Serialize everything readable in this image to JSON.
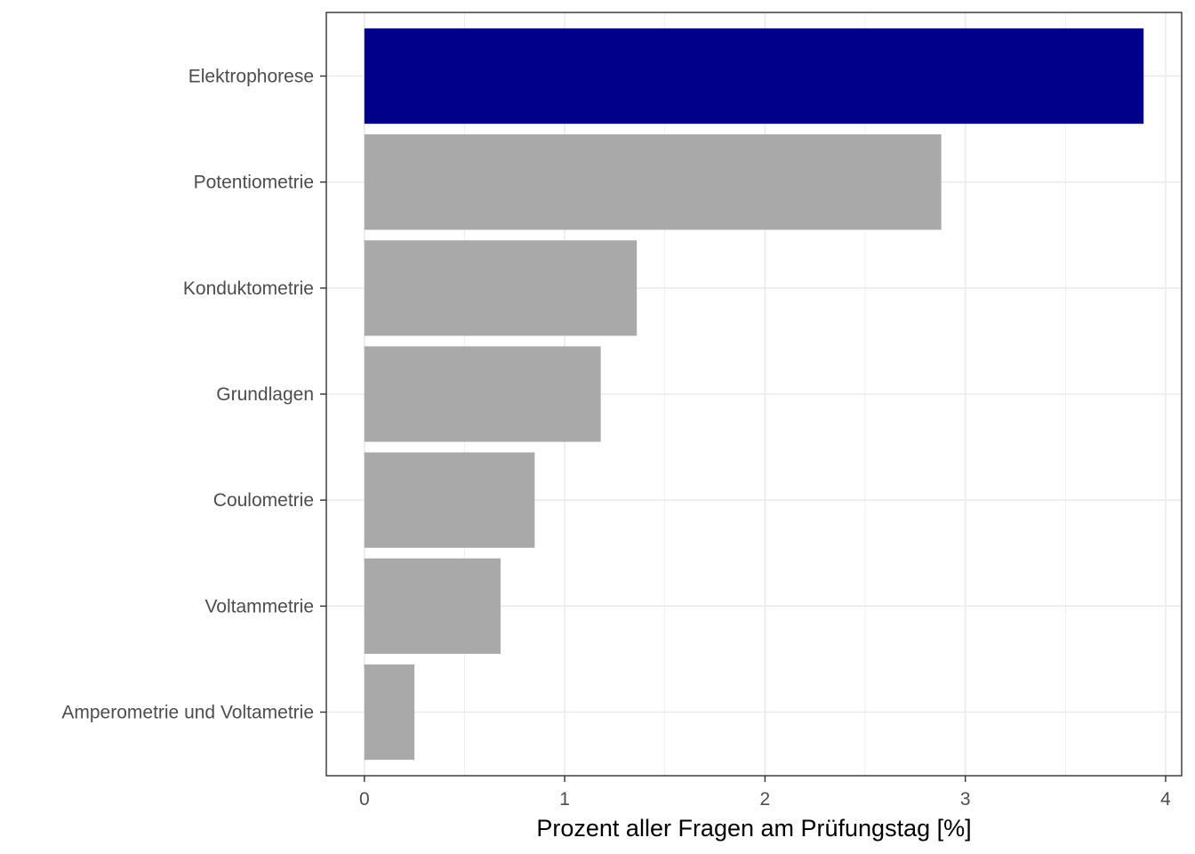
{
  "chart_data": {
    "type": "bar",
    "orientation": "horizontal",
    "categories": [
      "Elektrophorese",
      "Potentiometrie",
      "Konduktometrie",
      "Grundlagen",
      "Coulometrie",
      "Voltammetrie",
      "Amperometrie und Voltametrie"
    ],
    "values": [
      3.89,
      2.88,
      1.36,
      1.18,
      0.85,
      0.68,
      0.25
    ],
    "highlight": [
      true,
      false,
      false,
      false,
      false,
      false,
      false
    ],
    "xlabel": "Prozent aller Fragen am Prüfungstag [%]",
    "ylabel": "",
    "xlim": [
      -0.19,
      4.08
    ],
    "xticks": [
      "0",
      "1",
      "2",
      "3",
      "4"
    ],
    "grid": true,
    "colors": {
      "highlight": "#00008b",
      "default": "#a9a9a9",
      "grid": "#ebebeb",
      "panel_border": "#333333"
    }
  }
}
